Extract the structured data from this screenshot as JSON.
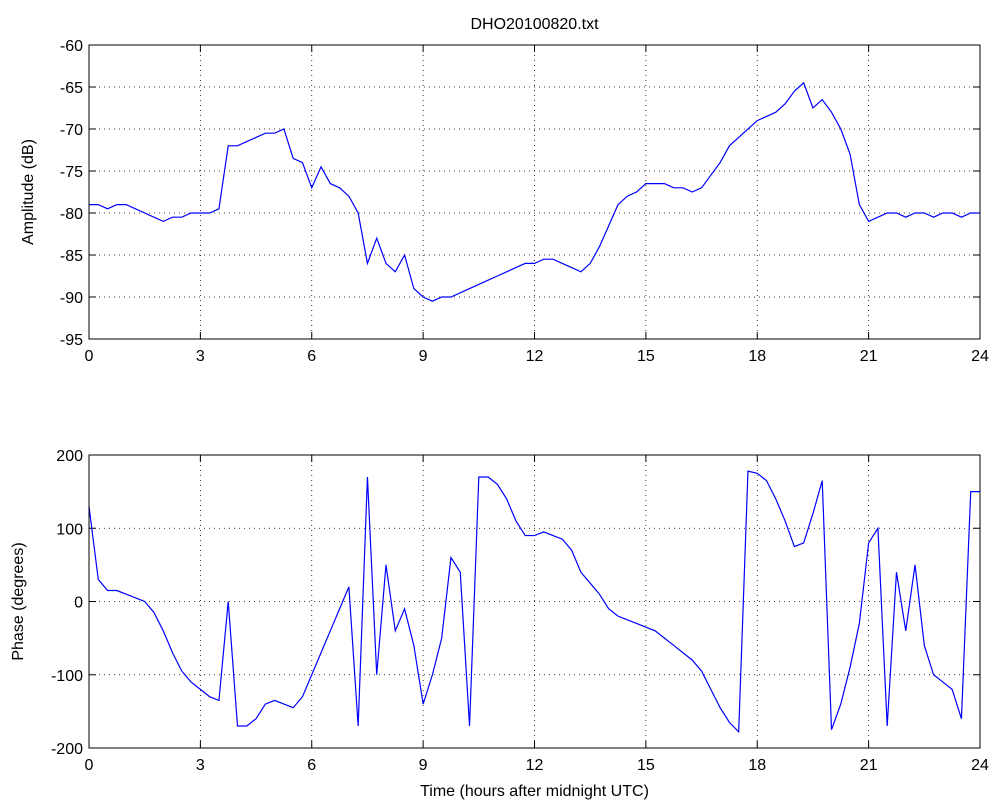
{
  "chart_data": [
    {
      "type": "line",
      "title": "DHO20100820.txt",
      "ylabel": "Amplitude (dB)",
      "xlim": [
        0,
        24
      ],
      "xticks": [
        0,
        3,
        6,
        9,
        12,
        15,
        18,
        21,
        24
      ],
      "ylim": [
        -95,
        -60
      ],
      "yticks": [
        -95,
        -90,
        -85,
        -80,
        -75,
        -70,
        -65,
        -60
      ],
      "grid": true,
      "x": [
        0,
        0.25,
        0.5,
        0.75,
        1,
        1.25,
        1.5,
        1.75,
        2,
        2.25,
        2.5,
        2.75,
        3,
        3.25,
        3.5,
        3.75,
        4,
        4.25,
        4.5,
        4.75,
        5,
        5.25,
        5.5,
        5.75,
        6,
        6.25,
        6.5,
        6.75,
        7,
        7.25,
        7.5,
        7.75,
        8,
        8.25,
        8.5,
        8.75,
        9,
        9.25,
        9.5,
        9.75,
        10,
        10.25,
        10.5,
        10.75,
        11,
        11.25,
        11.5,
        11.75,
        12,
        12.25,
        12.5,
        12.75,
        13,
        13.25,
        13.5,
        13.75,
        14,
        14.25,
        14.5,
        14.75,
        15,
        15.25,
        15.5,
        15.75,
        16,
        16.25,
        16.5,
        16.75,
        17,
        17.25,
        17.5,
        17.75,
        18,
        18.25,
        18.5,
        18.75,
        19,
        19.25,
        19.5,
        19.75,
        20,
        20.25,
        20.5,
        20.75,
        21,
        21.25,
        21.5,
        21.75,
        22,
        22.25,
        22.5,
        22.75,
        23,
        23.25,
        23.5,
        23.75,
        24
      ],
      "series": [
        {
          "color": "#0000ff",
          "values": [
            -79,
            -79,
            -79.5,
            -79,
            -79,
            -79.5,
            -80,
            -80.5,
            -81,
            -80.5,
            -80.5,
            -80,
            -80,
            -80,
            -79.5,
            -72,
            -72,
            -71.5,
            -71,
            -70.5,
            -70.5,
            -70,
            -73.5,
            -74,
            -77,
            -74.5,
            -76.5,
            -77,
            -78,
            -80,
            -86,
            -83,
            -86,
            -87,
            -85,
            -89,
            -90,
            -90.5,
            -90,
            -90,
            -89.5,
            -89,
            -88.5,
            -88,
            -87.5,
            -87,
            -86.5,
            -86,
            -86,
            -85.5,
            -85.5,
            -86,
            -86.5,
            -87,
            -86,
            -84,
            -81.5,
            -79,
            -78,
            -77.5,
            -76.5,
            -76.5,
            -76.5,
            -77,
            -77,
            -77.5,
            -77,
            -75.5,
            -74,
            -72,
            -71,
            -70,
            -69,
            -68.5,
            -68,
            -67,
            -65.5,
            -64.5,
            -67.5,
            -66.5,
            -68,
            -70,
            -73,
            -79,
            -81,
            -80.5,
            -80,
            -80,
            -80.5,
            -80,
            -80,
            -80.5,
            -80,
            -80,
            -80.5,
            -80,
            -80
          ]
        }
      ]
    },
    {
      "type": "line",
      "xlabel": "Time (hours after midnight UTC)",
      "ylabel": "Phase (degrees)",
      "xlim": [
        0,
        24
      ],
      "xticks": [
        0,
        3,
        6,
        9,
        12,
        15,
        18,
        21,
        24
      ],
      "ylim": [
        -200,
        200
      ],
      "yticks": [
        -200,
        -100,
        0,
        100,
        200
      ],
      "grid": true,
      "x": [
        0,
        0.25,
        0.5,
        0.75,
        1,
        1.25,
        1.5,
        1.75,
        2,
        2.25,
        2.5,
        2.75,
        3,
        3.25,
        3.5,
        3.75,
        4,
        4.25,
        4.5,
        4.75,
        5,
        5.25,
        5.5,
        5.75,
        6,
        6.25,
        6.5,
        6.75,
        7,
        7.25,
        7.5,
        7.75,
        8,
        8.25,
        8.5,
        8.75,
        9,
        9.25,
        9.5,
        9.75,
        10,
        10.25,
        10.5,
        10.75,
        11,
        11.25,
        11.5,
        11.75,
        12,
        12.25,
        12.5,
        12.75,
        13,
        13.25,
        13.5,
        13.75,
        14,
        14.25,
        14.5,
        14.75,
        15,
        15.25,
        15.5,
        15.75,
        16,
        16.25,
        16.5,
        16.75,
        17,
        17.25,
        17.5,
        17.75,
        18,
        18.25,
        18.5,
        18.75,
        19,
        19.25,
        19.5,
        19.75,
        20,
        20.25,
        20.5,
        20.75,
        21,
        21.25,
        21.5,
        21.75,
        22,
        22.25,
        22.5,
        22.75,
        23,
        23.25,
        23.5,
        23.75,
        24
      ],
      "series": [
        {
          "color": "#0000ff",
          "values": [
            130,
            30,
            15,
            15,
            10,
            5,
            0,
            -15,
            -40,
            -70,
            -95,
            -110,
            -120,
            -130,
            -135,
            0,
            -170,
            -170,
            -160,
            -140,
            -135,
            -140,
            -145,
            -130,
            -100,
            -70,
            -40,
            -10,
            20,
            -170,
            170,
            -100,
            50,
            -40,
            -10,
            -60,
            -140,
            -100,
            -50,
            60,
            40,
            -170,
            170,
            170,
            160,
            140,
            110,
            90,
            90,
            95,
            90,
            85,
            70,
            40,
            25,
            10,
            -10,
            -20,
            -25,
            -30,
            -35,
            -40,
            -50,
            -60,
            -70,
            -80,
            -95,
            -120,
            -145,
            -165,
            -178,
            178,
            175,
            165,
            140,
            110,
            75,
            80,
            120,
            165,
            -175,
            -140,
            -90,
            -30,
            80,
            100,
            -170,
            40,
            -40,
            50,
            -60,
            -100,
            -110,
            -120,
            -160,
            150,
            150
          ]
        }
      ]
    }
  ]
}
